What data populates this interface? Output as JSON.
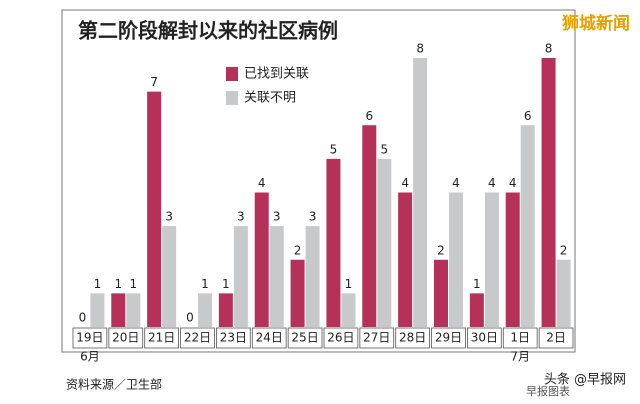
{
  "chart_data": {
    "type": "bar",
    "title": "第二阶段解封以来的社区病例",
    "categories": [
      "19日",
      "20日",
      "21日",
      "22日",
      "23日",
      "24日",
      "25日",
      "26日",
      "27日",
      "28日",
      "29日",
      "30日",
      "1日",
      "2日"
    ],
    "month_labels": [
      "6月",
      null,
      null,
      null,
      null,
      null,
      null,
      null,
      null,
      null,
      null,
      null,
      "7月",
      null
    ],
    "series": [
      {
        "name": "已找到关联",
        "color": "#b5315a",
        "values": [
          0,
          1,
          7,
          0,
          1,
          4,
          2,
          5,
          6,
          4,
          2,
          1,
          4,
          8
        ]
      },
      {
        "name": "关联不明",
        "color": "#c8c9cb",
        "values": [
          1,
          1,
          3,
          1,
          3,
          3,
          3,
          1,
          5,
          8,
          4,
          4,
          6,
          2
        ]
      }
    ],
    "source": "资料来源／卫生部",
    "credit": "早报图表",
    "watermark_top": "狮城新闻",
    "watermark_bottom": "头条 @早报网"
  }
}
